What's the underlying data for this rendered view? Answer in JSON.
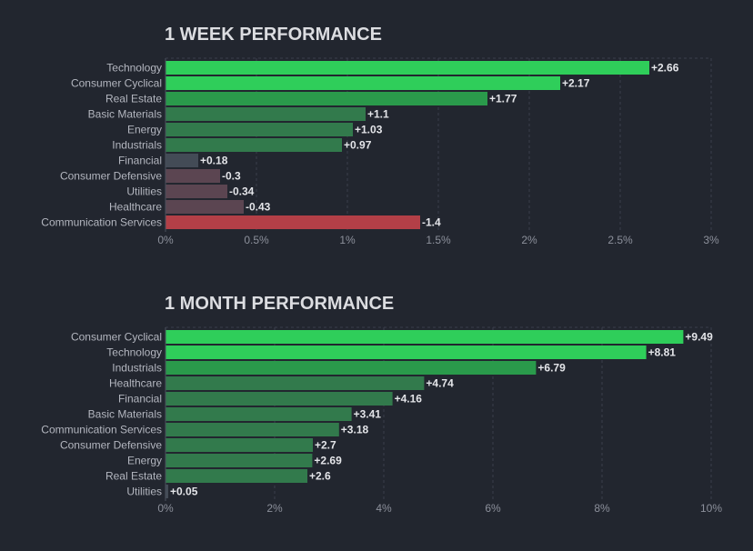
{
  "chart_data": [
    {
      "type": "bar",
      "orientation": "horizontal",
      "title": "1 WEEK PERFORMANCE",
      "categories": [
        "Technology",
        "Consumer Cyclical",
        "Real Estate",
        "Basic Materials",
        "Energy",
        "Industrials",
        "Financial",
        "Consumer Defensive",
        "Utilities",
        "Healthcare",
        "Communication Services"
      ],
      "values": [
        2.66,
        2.17,
        1.77,
        1.1,
        1.03,
        0.97,
        0.18,
        -0.3,
        -0.34,
        -0.43,
        -1.4
      ],
      "value_labels": [
        "+2.66",
        "+2.17",
        "+1.77",
        "+1.1",
        "+1.03",
        "+0.97",
        "+0.18",
        "-0.3",
        "-0.34",
        "-0.43",
        "-1.4"
      ],
      "xlim": [
        0,
        3
      ],
      "xticks": [
        "0%",
        "0.5%",
        "1%",
        "1.5%",
        "2%",
        "2.5%",
        "3%"
      ],
      "xlabel": "",
      "ylabel": "",
      "grid": true
    },
    {
      "type": "bar",
      "orientation": "horizontal",
      "title": "1 MONTH PERFORMANCE",
      "categories": [
        "Consumer Cyclical",
        "Technology",
        "Industrials",
        "Healthcare",
        "Financial",
        "Basic Materials",
        "Communication Services",
        "Consumer Defensive",
        "Energy",
        "Real Estate",
        "Utilities"
      ],
      "values": [
        9.49,
        8.81,
        6.79,
        4.74,
        4.16,
        3.41,
        3.18,
        2.7,
        2.69,
        2.6,
        0.05
      ],
      "value_labels": [
        "+9.49",
        "+8.81",
        "+6.79",
        "+4.74",
        "+4.16",
        "+3.41",
        "+3.18",
        "+2.7",
        "+2.69",
        "+2.6",
        "+0.05"
      ],
      "xlim": [
        0,
        10
      ],
      "xticks": [
        "0%",
        "2%",
        "4%",
        "6%",
        "8%",
        "10%"
      ],
      "xlabel": "",
      "ylabel": "",
      "grid": true
    }
  ],
  "colors": {
    "background": "#22262f",
    "positive_strong": "#2fce5a",
    "positive_mid": "#2a9a4b",
    "positive_weak": "#327a4c",
    "neutral": "#434b56",
    "negative_weak": "#5b4551",
    "negative_strong": "#b33f47"
  }
}
